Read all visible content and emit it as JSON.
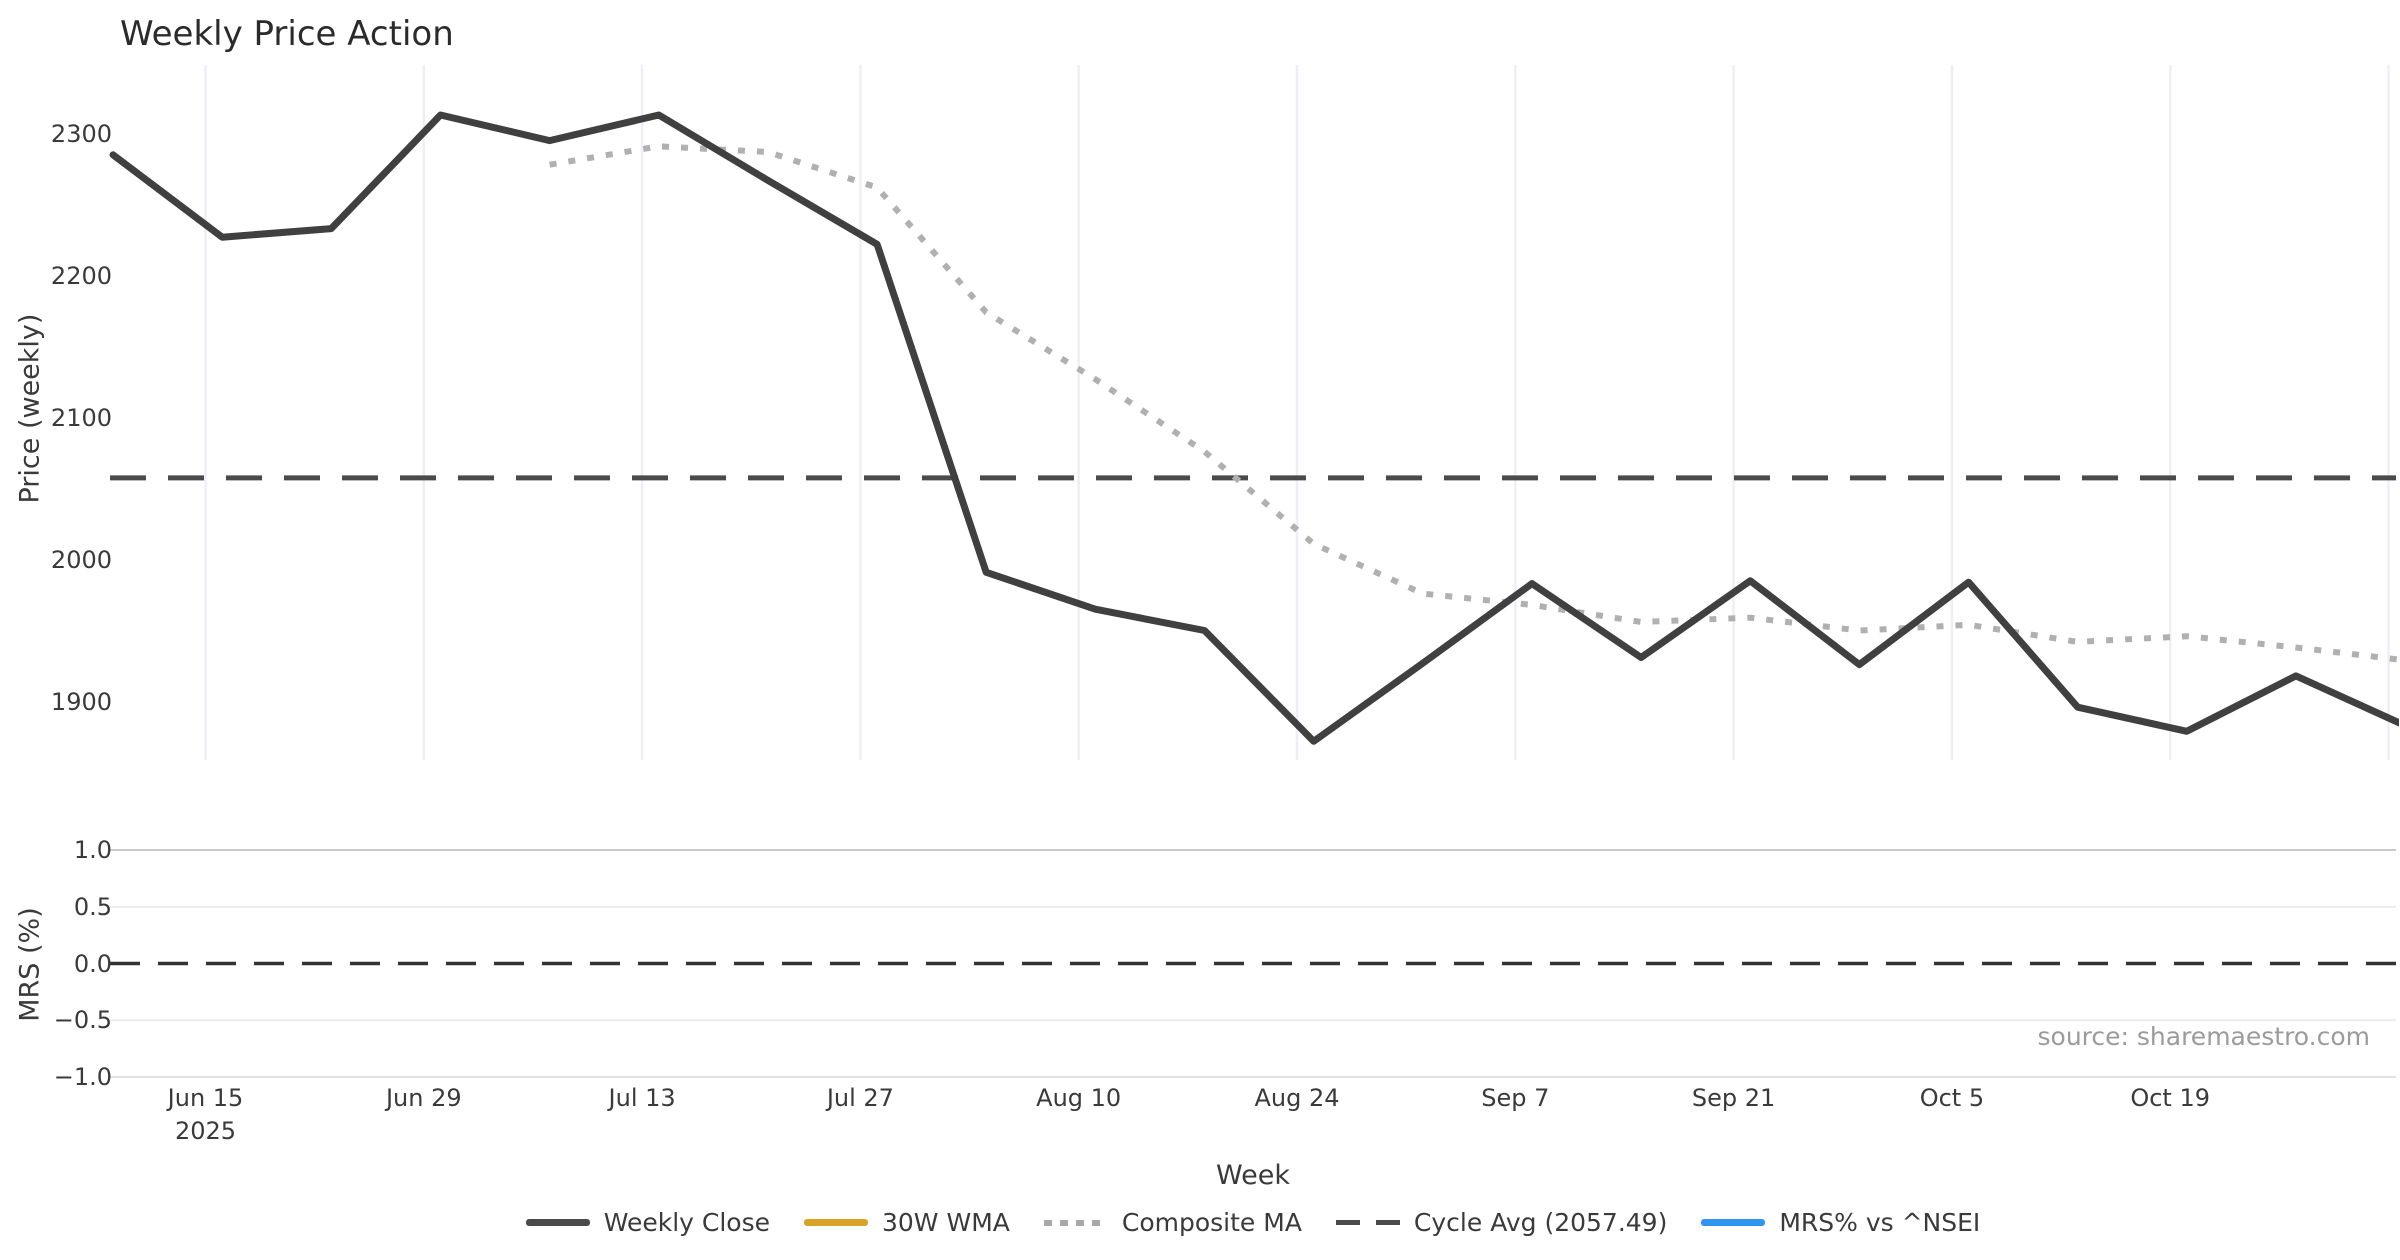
{
  "title": "Weekly Price Action",
  "source": "source: sharemaestro.com",
  "price_panel": {
    "ylabel": "Price (weekly)",
    "yticks": [
      2300,
      2200,
      2100,
      2000,
      1900
    ],
    "cycle_avg_value": 2057.49
  },
  "mrs_panel": {
    "ylabel": "MRS (%)",
    "yticks": [
      "1.0",
      "0.5",
      "0.0",
      "−0.5",
      "−1.0"
    ],
    "ytick_values": [
      1.0,
      0.5,
      0.0,
      -0.5,
      -1.0
    ],
    "zero_line_value": 0.0
  },
  "x_axis": {
    "label": "Week",
    "ticks": [
      {
        "label": "Jun 15",
        "sublabel": "2025"
      },
      {
        "label": "Jun 29",
        "sublabel": ""
      },
      {
        "label": "Jul 13",
        "sublabel": ""
      },
      {
        "label": "Jul 27",
        "sublabel": ""
      },
      {
        "label": "Aug 10",
        "sublabel": ""
      },
      {
        "label": "Aug 24",
        "sublabel": ""
      },
      {
        "label": "Sep 7",
        "sublabel": ""
      },
      {
        "label": "Sep 21",
        "sublabel": ""
      },
      {
        "label": "Oct 5",
        "sublabel": ""
      },
      {
        "label": "Oct 19",
        "sublabel": ""
      }
    ]
  },
  "legend": {
    "items": [
      {
        "label": "Weekly Close",
        "swatch": "solid",
        "color": "#4a4a4a"
      },
      {
        "label": "30W WMA",
        "swatch": "solid",
        "color": "#d9a425"
      },
      {
        "label": "Composite MA",
        "swatch": "dotted",
        "color": "#a8a8a8"
      },
      {
        "label": "Cycle Avg (2057.49)",
        "swatch": "dashed",
        "color": "#4a4a4a"
      },
      {
        "label": "MRS% vs ^NSEI",
        "swatch": "solid",
        "color": "#2e96f0"
      }
    ]
  },
  "colors": {
    "weekly_close": "#404040",
    "composite_ma": "#b0b0b0",
    "cycle_avg": "#4a4a4a",
    "mrs_zero": "#333333",
    "grid_vertical": "#edeff5",
    "mrs_grid_major": "#c9c9c9",
    "mrs_grid_minor": "#ececec"
  },
  "chart_data": [
    {
      "type": "line",
      "panel": "price",
      "title": "Weekly Price Action",
      "xlabel": "Week",
      "ylabel": "Price (weekly)",
      "x": [
        "Jun 9",
        "Jun 16",
        "Jun 23",
        "Jun 30",
        "Jul 7",
        "Jul 14",
        "Jul 21",
        "Jul 28",
        "Aug 4",
        "Aug 11",
        "Aug 18",
        "Aug 25",
        "Sep 1",
        "Sep 8",
        "Sep 15",
        "Sep 22",
        "Sep 29",
        "Oct 6",
        "Oct 13",
        "Oct 20",
        "Oct 27",
        "Nov 3"
      ],
      "xtick_labels": [
        "Jun 15 2025",
        "Jun 29",
        "Jul 13",
        "Jul 27",
        "Aug 10",
        "Aug 24",
        "Sep 7",
        "Sep 21",
        "Oct 5",
        "Oct 19"
      ],
      "ylim": [
        1859,
        2348
      ],
      "grid": "vertical-only",
      "series": [
        {
          "name": "Weekly Close",
          "style": "solid",
          "values": [
            2285,
            2227,
            2233,
            2313,
            2295,
            2313,
            2267,
            2222,
            1991,
            1965,
            1950,
            1872,
            1927,
            1983,
            1931,
            1985,
            1926,
            1984,
            1896,
            1879,
            1918,
            1883
          ]
        },
        {
          "name": "30W WMA",
          "style": "solid",
          "values": []
        },
        {
          "name": "Composite MA",
          "style": "dotted",
          "values": [
            null,
            null,
            null,
            null,
            2278,
            2291,
            2287,
            2262,
            2174,
            2127,
            2076,
            2011,
            1976,
            1968,
            1956,
            1959,
            1950,
            1954,
            1942,
            1946,
            1938,
            1929
          ]
        },
        {
          "name": "Cycle Avg (2057.49)",
          "style": "dashed-hline",
          "value": 2057.49
        }
      ]
    },
    {
      "type": "line",
      "panel": "mrs",
      "ylabel": "MRS (%)",
      "ylim": [
        -1.05,
        1.05
      ],
      "yticks": [
        1.0,
        0.5,
        0.0,
        -0.5,
        -1.0
      ],
      "grid": "horizontal-only",
      "series": [
        {
          "name": "MRS% vs ^NSEI",
          "style": "solid",
          "values": []
        },
        {
          "name": "Zero line",
          "style": "dashed-hline",
          "value": 0.0
        }
      ]
    }
  ]
}
